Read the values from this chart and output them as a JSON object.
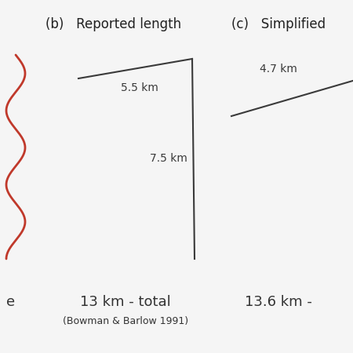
{
  "title_b": "(b)   Reported length",
  "title_c": "(c)   Simplified",
  "segment1_label": "5.5 km",
  "segment2_label": "7.5 km",
  "segment3_label": "4.7 km",
  "total_b": "13 km - total",
  "citation_b": "(Bowman & Barlow 1991)",
  "total_c": "13.6 km -",
  "bottom_left_text": "e",
  "line_color": "#3a3a3a",
  "red_color": "#c0392b",
  "bg_color": "#f5f5f5",
  "title_fontsize": 12,
  "label_fontsize": 10,
  "total_fontsize": 13,
  "citation_fontsize": 9
}
